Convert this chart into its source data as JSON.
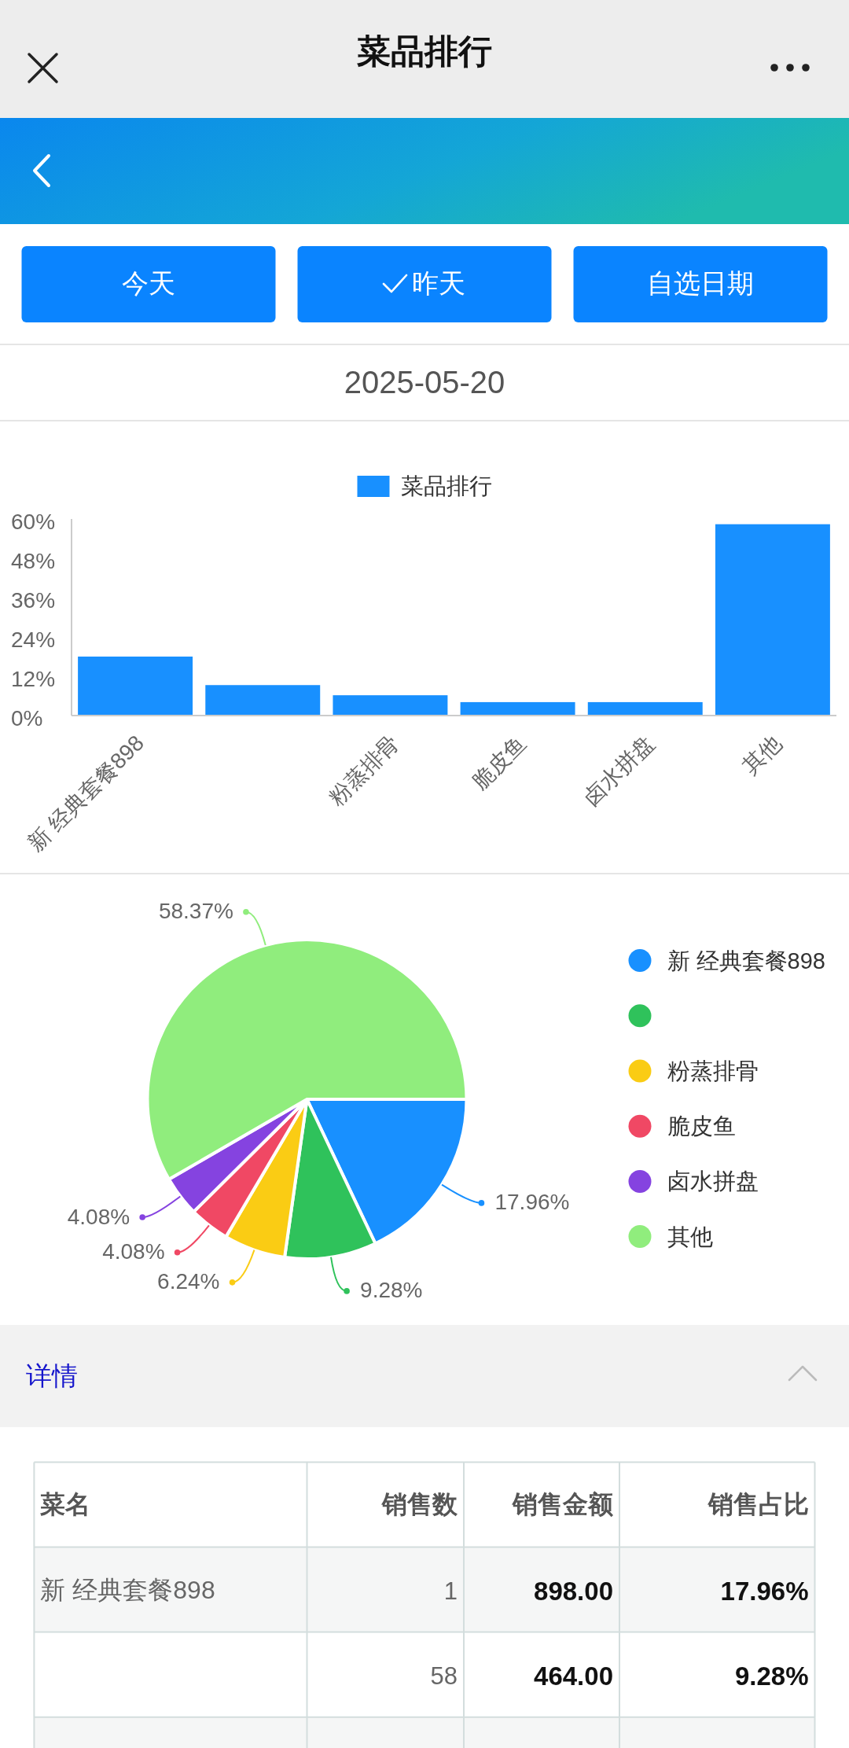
{
  "chart_data": [
    {
      "type": "bar",
      "title": "菜品排行",
      "subtitle": "2025-05-20",
      "annotations": [
        "今天",
        "昨天",
        "自选日期"
      ],
      "categories": [
        "新 经典套餐898",
        null,
        "粉蒸排骨",
        "脆皮鱼",
        "卤水拼盘",
        "其他"
      ],
      "series": [
        {
          "name": "菜品排行",
          "color": "#1890ff",
          "values": [
            18,
            9.3,
            6.2,
            4.1,
            4.1,
            58.4
          ]
        }
      ],
      "ylim": [
        0,
        60
      ],
      "yticks": [
        {
          "value": 0,
          "label": "0%"
        },
        {
          "value": 12,
          "label": "12%"
        },
        {
          "value": 24,
          "label": "24%"
        },
        {
          "value": 36,
          "label": "36%"
        },
        {
          "value": 48,
          "label": "48%"
        },
        {
          "value": 60,
          "label": "60%"
        }
      ],
      "legend": "top"
    },
    {
      "type": "pie",
      "categories": [
        "新 经典套餐898",
        null,
        "粉蒸排骨",
        "脆皮鱼",
        "卤水拼盘",
        "其他"
      ],
      "values": [
        17.96,
        9.28,
        6.24,
        4.08,
        4.08,
        58.37
      ],
      "colors": [
        "#1890ff",
        "#2fc25b",
        "#facc14",
        "#f04864",
        "#8543e0",
        "#90ed7d"
      ],
      "value_labels": [
        "17.96%",
        "9.28%",
        "6.24%",
        "4.08%",
        "4.08%",
        "58.37%"
      ],
      "legend": "right"
    },
    {
      "type": "other",
      "title": "详情",
      "legend_title": "菜名",
      "categories": [
        "销售数",
        "销售金额",
        "销售占比"
      ],
      "series": [
        {
          "name": "新 经典套餐898",
          "values": [
            1,
            898,
            17.96
          ],
          "value_labels": [
            "1",
            "898.00",
            "17.96%"
          ]
        },
        {
          "values": [
            58,
            464,
            9.28
          ],
          "value_labels": [
            "58",
            "464.00",
            "9.28%"
          ]
        }
      ]
    }
  ]
}
